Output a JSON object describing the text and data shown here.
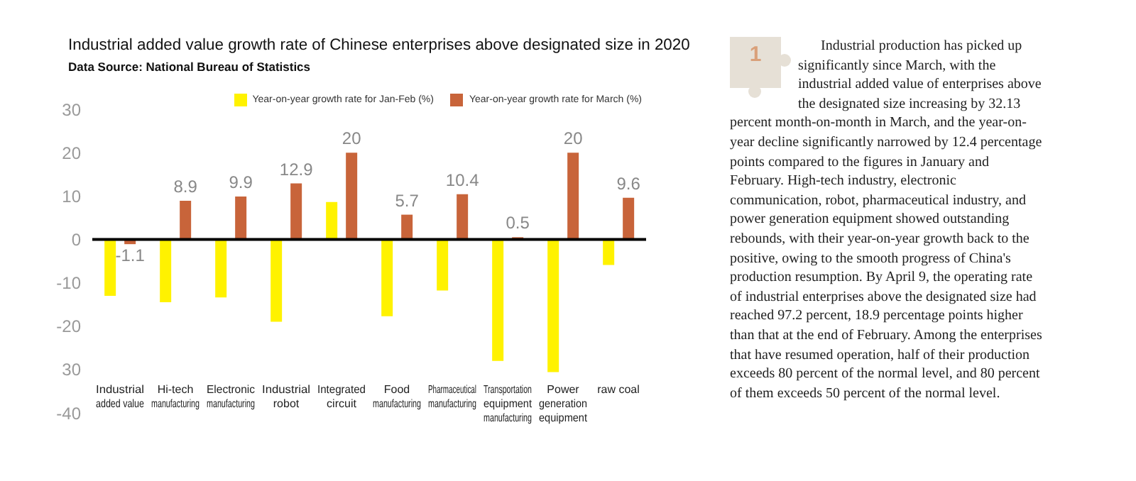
{
  "chart_data": [
    {
      "type": "bar",
      "title": "Industrial added value growth rate of Chinese enterprises above designated size in 2020",
      "subtitle": "Data Source: National Bureau of Statistics",
      "categories": [
        "Industrial added value",
        "Hi-tech manufacturing",
        "Electronic manufacturing",
        "Industrial robot",
        "Integrated circuit",
        "Food manufacturing",
        "Pharmaceutical manufacturing",
        "Transportation equipment manufacturing",
        "Power generation equipment",
        "raw coal"
      ],
      "series": [
        {
          "name": "Year-on-year growth rate for Jan-Feb (%)",
          "color": "#fff200",
          "values": [
            -13,
            -14.5,
            -13.4,
            -19,
            8.6,
            -17.7,
            -11.8,
            -28,
            -30.6,
            -5.9
          ]
        },
        {
          "name": "Year-on-year growth rate for March (%)",
          "color": "#c8643a",
          "values": [
            -1.1,
            8.9,
            9.9,
            12.9,
            20,
            5.7,
            10.4,
            0.5,
            20,
            9.6
          ],
          "value_labels": [
            "-1.1",
            "8.9",
            "9.9",
            "12.9",
            "20",
            "5.7",
            "10.4",
            "0.5",
            "20",
            "9.6"
          ]
        }
      ],
      "ylim": [
        -40,
        30
      ],
      "yticks": [
        -40,
        {
          "value": -30,
          "label": "30"
        },
        -20,
        -10,
        0,
        10,
        20,
        30
      ],
      "ref_lines": [
        {
          "axis": "y",
          "value": 0,
          "color": "#000000"
        }
      ],
      "grid": false,
      "legend": "top right"
    },
    {
      "type": "other",
      "annotations": [
        "1",
        "Industrial production has picked up significantly since March, with the industrial added value of enterprises above the designated size increasing by 32.13 percent month-on-month in March, and the year-on-year decline significantly narrowed by 12.4 percentage points compared to the figures in January and February. High-tech industry, electronic communication, robot, pharmaceutical industry, and power generation equipment showed outstanding rebounds, with their year-on-year growth back to the positive, owing to the smooth progress of China's production resumption. By April 9, the operating rate of industrial enterprises above the designated size had reached 97.2 percent, 18.9 percentage points higher than that at the end of February. Among the enterprises that have resumed operation, half of their production exceeds 80 percent of the normal level, and 80 percent of them exceeds 50 percent of the normal level."
      ]
    }
  ]
}
